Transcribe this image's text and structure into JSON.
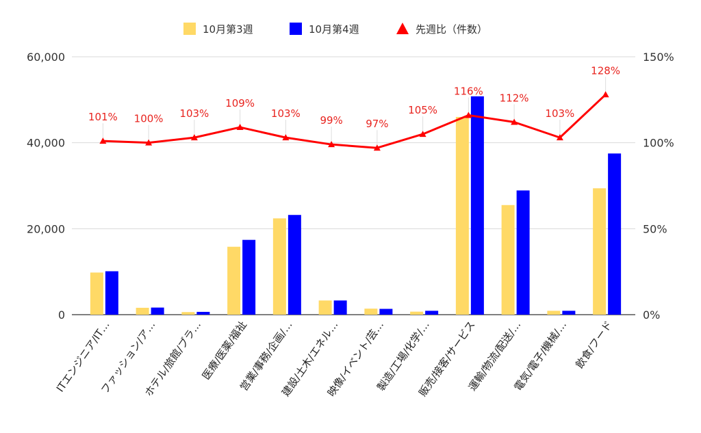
{
  "chart_data": {
    "type": "bar",
    "categories": [
      "ITエンジニア/IT…",
      "ファッション/ア…",
      "ホテル/旅館/ブラ…",
      "医療/医薬/福祉",
      "営業/事務/企画/…",
      "建設/土木/エネル…",
      "映像/イベント/芸…",
      "製造/工場/化学/…",
      "販売/接客/サービス",
      "運輸/物流/配送/…",
      "電気/電子/機械/…",
      "飲食/フード"
    ],
    "series": [
      {
        "name": "10月第3週",
        "type": "bar",
        "axis": "left",
        "color": "#ffd966",
        "values": [
          9800,
          1600,
          600,
          15800,
          22400,
          3300,
          1400,
          700,
          46000,
          25500,
          900,
          29400
        ]
      },
      {
        "name": "10月第4週",
        "type": "bar",
        "axis": "left",
        "color": "#0000ff",
        "values": [
          10100,
          1650,
          650,
          17400,
          23200,
          3300,
          1350,
          900,
          50800,
          28900,
          900,
          37500
        ]
      },
      {
        "name": "先週比（件数）",
        "type": "line",
        "axis": "right",
        "color": "#ff0000",
        "values": [
          101,
          100,
          103,
          109,
          103,
          99,
          97,
          105,
          116,
          112,
          103,
          128
        ],
        "labels": [
          "101%",
          "100%",
          "103%",
          "109%",
          "103%",
          "99%",
          "97%",
          "105%",
          "116%",
          "112%",
          "103%",
          "128%"
        ]
      }
    ],
    "y_left": {
      "min": 0,
      "max": 60000,
      "ticks": [
        "0",
        "20,000",
        "40,000",
        "60,000"
      ]
    },
    "y_right": {
      "min": 0,
      "max": 150,
      "ticks": [
        "0%",
        "50%",
        "100%",
        "150%"
      ]
    },
    "grid": true,
    "legend_position": "top-center",
    "title": "",
    "xlabel": "",
    "ylabel": ""
  }
}
